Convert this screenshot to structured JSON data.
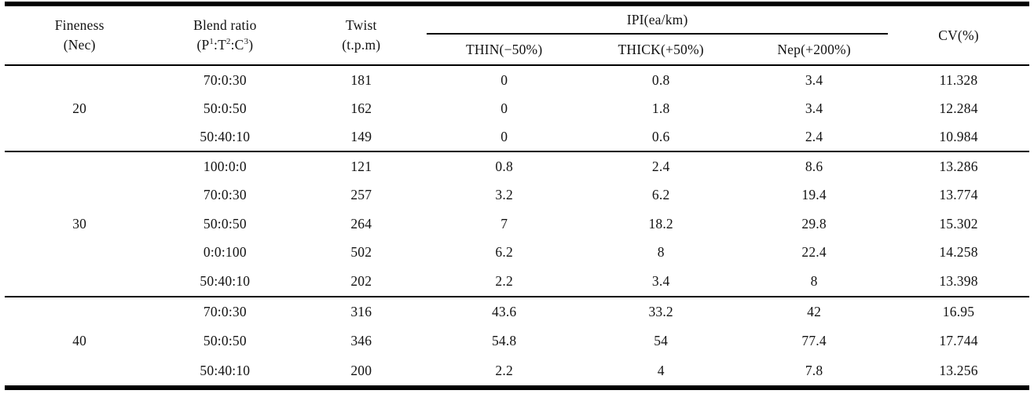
{
  "page": {
    "background": "#ffffff",
    "text_color": "#121212",
    "rule_color": "#000000"
  },
  "table": {
    "header": {
      "fineness": "Fineness",
      "fineness_sub": "(Nec)",
      "blend": "Blend ratio",
      "blend_sub": {
        "open": "(P",
        "sup1": "1",
        "sep1": ":T",
        "sup2": "2",
        "sep2": ":C",
        "sup3": "3",
        "close": ")"
      },
      "twist": "Twist",
      "twist_sub": "(t.p.m)",
      "ipi_group": "IPI(ea/km)",
      "thin": "THIN(−50%)",
      "thick": "THICK(+50%)",
      "nep": "Nep(+200%)",
      "cv": "CV(%)"
    },
    "groups": [
      {
        "fineness": "20",
        "rows": [
          {
            "blend": "70:0:30",
            "twist": "181",
            "thin": "0",
            "thick": "0.8",
            "nep": "3.4",
            "cv": "11.328"
          },
          {
            "blend": "50:0:50",
            "twist": "162",
            "thin": "0",
            "thick": "1.8",
            "nep": "3.4",
            "cv": "12.284"
          },
          {
            "blend": "50:40:10",
            "twist": "149",
            "thin": "0",
            "thick": "0.6",
            "nep": "2.4",
            "cv": "10.984"
          }
        ]
      },
      {
        "fineness": "30",
        "rows": [
          {
            "blend": "100:0:0",
            "twist": "121",
            "thin": "0.8",
            "thick": "2.4",
            "nep": "8.6",
            "cv": "13.286"
          },
          {
            "blend": "70:0:30",
            "twist": "257",
            "thin": "3.2",
            "thick": "6.2",
            "nep": "19.4",
            "cv": "13.774"
          },
          {
            "blend": "50:0:50",
            "twist": "264",
            "thin": "7",
            "thick": "18.2",
            "nep": "29.8",
            "cv": "15.302"
          },
          {
            "blend": "0:0:100",
            "twist": "502",
            "thin": "6.2",
            "thick": "8",
            "nep": "22.4",
            "cv": "14.258"
          },
          {
            "blend": "50:40:10",
            "twist": "202",
            "thin": "2.2",
            "thick": "3.4",
            "nep": "8",
            "cv": "13.398"
          }
        ]
      },
      {
        "fineness": "40",
        "rows": [
          {
            "blend": "70:0:30",
            "twist": "316",
            "thin": "43.6",
            "thick": "33.2",
            "nep": "42",
            "cv": "16.95"
          },
          {
            "blend": "50:0:50",
            "twist": "346",
            "thin": "54.8",
            "thick": "54",
            "nep": "77.4",
            "cv": "17.744"
          },
          {
            "blend": "50:40:10",
            "twist": "200",
            "thin": "2.2",
            "thick": "4",
            "nep": "7.8",
            "cv": "13.256"
          }
        ]
      }
    ]
  }
}
